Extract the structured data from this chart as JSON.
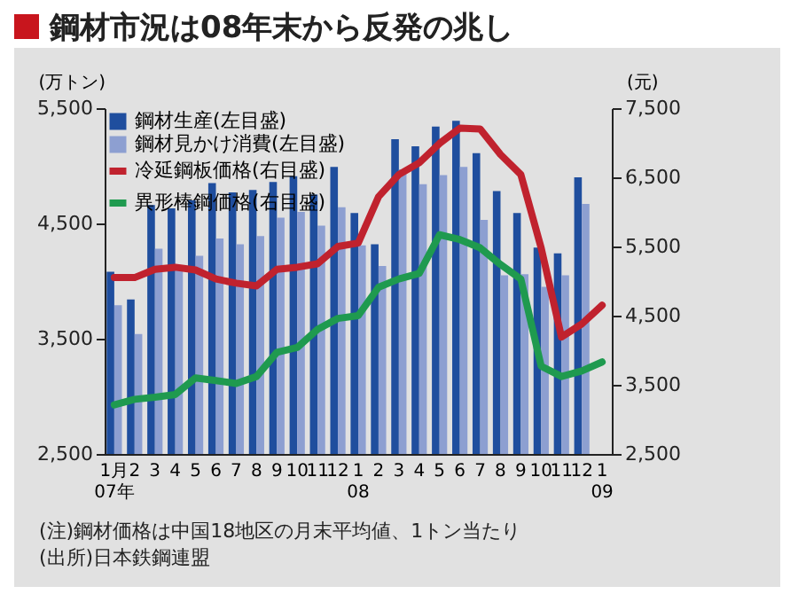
{
  "chart_data": {
    "type": "bar",
    "title": "鋼材市況は08年末から反発の兆し",
    "ylabel": "(万トン)",
    "y2label": "(元)",
    "categories": [
      "1月\n07年",
      "2",
      "3",
      "4",
      "5",
      "6",
      "7",
      "8",
      "9",
      "10",
      "11",
      "12",
      "1\n08",
      "2",
      "3",
      "4",
      "5",
      "6",
      "7",
      "8",
      "9",
      "10",
      "11",
      "12",
      "1\n09"
    ],
    "series": [
      {
        "name": "鋼材生産(左目盛)",
        "color": "#1f4e9e",
        "values": [
          4080,
          3840,
          4660,
          4630,
          4700,
          4850,
          4770,
          4790,
          4860,
          4910,
          4750,
          4990,
          4590,
          4320,
          5230,
          5170,
          5340,
          5390,
          5110,
          4780,
          4590,
          4290,
          4240,
          4900,
          null
        ]
      },
      {
        "name": "鋼材見かけ消費(左目盛)",
        "color": "#8d9fd1",
        "values": [
          3790,
          3540,
          4280,
          4100,
          4220,
          4370,
          4320,
          4390,
          4550,
          4600,
          4480,
          4640,
          4310,
          4130,
          4970,
          4840,
          4920,
          4990,
          4530,
          4050,
          4060,
          3950,
          4050,
          4670,
          null
        ]
      },
      {
        "name": "冷延鋼板価格(右目盛)",
        "type": "line",
        "axis": "y2",
        "color": "#c0222e",
        "values": [
          5050,
          5050,
          5170,
          5200,
          5160,
          5030,
          4970,
          4930,
          5170,
          5200,
          5250,
          5500,
          5550,
          6220,
          6540,
          6710,
          6990,
          7210,
          7200,
          6830,
          6540,
          5480,
          4190,
          4380,
          4650
        ]
      },
      {
        "name": "異形棒鋼価格(右目盛)",
        "type": "line",
        "axis": "y2",
        "color": "#1f9a4f",
        "values": [
          3210,
          3290,
          3320,
          3360,
          3600,
          3560,
          3520,
          3620,
          3970,
          4040,
          4300,
          4460,
          4500,
          4910,
          5030,
          5110,
          5670,
          5600,
          5480,
          5240,
          5030,
          3770,
          3620,
          3700,
          3830
        ]
      }
    ],
    "ylim": [
      2500,
      5500
    ],
    "yticks": [
      {
        "value": 2500,
        "label": "2,500"
      },
      {
        "value": 3500,
        "label": "3,500"
      },
      {
        "value": 4500,
        "label": "4,500"
      },
      {
        "value": 5500,
        "label": "5,500"
      }
    ],
    "y2lim": [
      2500,
      7500
    ],
    "y2ticks": [
      {
        "value": 2500,
        "label": "2,500"
      },
      {
        "value": 3500,
        "label": "3,500"
      },
      {
        "value": 4500,
        "label": "4,500"
      },
      {
        "value": 5500,
        "label": "5,500"
      },
      {
        "value": 6500,
        "label": "6,500"
      },
      {
        "value": 7500,
        "label": "7,500"
      }
    ],
    "legend": "top left",
    "annotations": [
      "(注)鋼材価格は中国18地区の月末平均値、1トン当たり",
      "(出所)日本鉄鋼連盟"
    ]
  }
}
